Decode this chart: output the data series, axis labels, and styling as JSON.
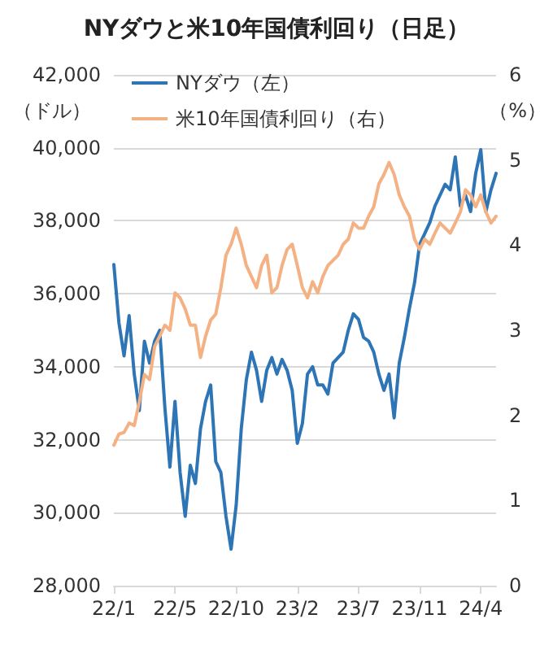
{
  "chart_data": {
    "type": "line",
    "title": "NYダウと米10年国債利回り（日足）",
    "ylabel": "（ドル）",
    "y2label": "（%）",
    "categories": [
      "22/1",
      null,
      null,
      null,
      null,
      null,
      null,
      null,
      null,
      null,
      null,
      null,
      "22/5",
      null,
      null,
      null,
      null,
      null,
      null,
      null,
      null,
      null,
      null,
      null,
      "22/10",
      null,
      null,
      null,
      null,
      null,
      null,
      null,
      null,
      null,
      null,
      null,
      "23/2",
      null,
      null,
      null,
      null,
      null,
      null,
      null,
      null,
      null,
      null,
      null,
      "23/7",
      null,
      null,
      null,
      null,
      null,
      null,
      null,
      null,
      null,
      null,
      null,
      "23/11",
      null,
      null,
      null,
      null,
      null,
      null,
      null,
      null,
      null,
      null,
      null,
      "24/4",
      null,
      null,
      null
    ],
    "series": [
      {
        "name": "NYダウ（左）",
        "color": "#2e75b6",
        "values": [
          36800,
          35200,
          34300,
          35400,
          33800,
          32800,
          34700,
          34100,
          34700,
          35000,
          32900,
          31250,
          33050,
          31100,
          29900,
          31300,
          30800,
          32300,
          33050,
          33500,
          31400,
          31100,
          29900,
          29000,
          30200,
          32300,
          33650,
          34400,
          33900,
          33050,
          33900,
          34250,
          33800,
          34200,
          33900,
          33350,
          31900,
          32450,
          33800,
          34000,
          33500,
          33500,
          33250,
          34100,
          34250,
          34400,
          35000,
          35450,
          35300,
          34800,
          34700,
          34400,
          33800,
          33350,
          33800,
          32600,
          34100,
          34800,
          35600,
          36300,
          37350,
          37650,
          37950,
          38400,
          38700,
          39000,
          38850,
          39750,
          38400,
          38700,
          38250,
          39300,
          39950,
          38250,
          38850,
          39300
        ]
      },
      {
        "name": "米10年国債利回り（右）",
        "color": "#f4b183",
        "axis": "y2",
        "values": [
          1.65,
          1.78,
          1.8,
          1.91,
          1.88,
          2.16,
          2.48,
          2.42,
          2.81,
          2.93,
          3.06,
          3.0,
          3.44,
          3.38,
          3.25,
          3.06,
          3.06,
          2.68,
          2.93,
          3.12,
          3.19,
          3.5,
          3.88,
          4.01,
          4.2,
          4.01,
          3.76,
          3.63,
          3.5,
          3.76,
          3.88,
          3.44,
          3.5,
          3.76,
          3.95,
          4.01,
          3.76,
          3.5,
          3.38,
          3.57,
          3.44,
          3.63,
          3.76,
          3.82,
          3.88,
          4.01,
          4.07,
          4.26,
          4.2,
          4.2,
          4.34,
          4.45,
          4.72,
          4.83,
          4.97,
          4.83,
          4.59,
          4.45,
          4.34,
          4.07,
          3.95,
          4.07,
          4.01,
          4.14,
          4.26,
          4.2,
          4.14,
          4.26,
          4.39,
          4.65,
          4.59,
          4.45,
          4.59,
          4.39,
          4.26,
          4.34
        ]
      }
    ],
    "ylim": [
      28000,
      42000
    ],
    "yticks": [
      {
        "value": 28000,
        "label": "28,000"
      },
      {
        "value": 30000,
        "label": "30,000"
      },
      {
        "value": 32000,
        "label": "32,000"
      },
      {
        "value": 34000,
        "label": "34,000"
      },
      {
        "value": 36000,
        "label": "36,000"
      },
      {
        "value": 38000,
        "label": "38,000"
      },
      {
        "value": 40000,
        "label": "40,000"
      },
      {
        "value": 42000,
        "label": "42,000"
      }
    ],
    "y2lim": [
      0,
      6
    ],
    "y2ticks": [
      0,
      1,
      2,
      3,
      4,
      5,
      6
    ],
    "grid": "y",
    "legend": "top left",
    "marker": "none",
    "line_style": "solid"
  }
}
